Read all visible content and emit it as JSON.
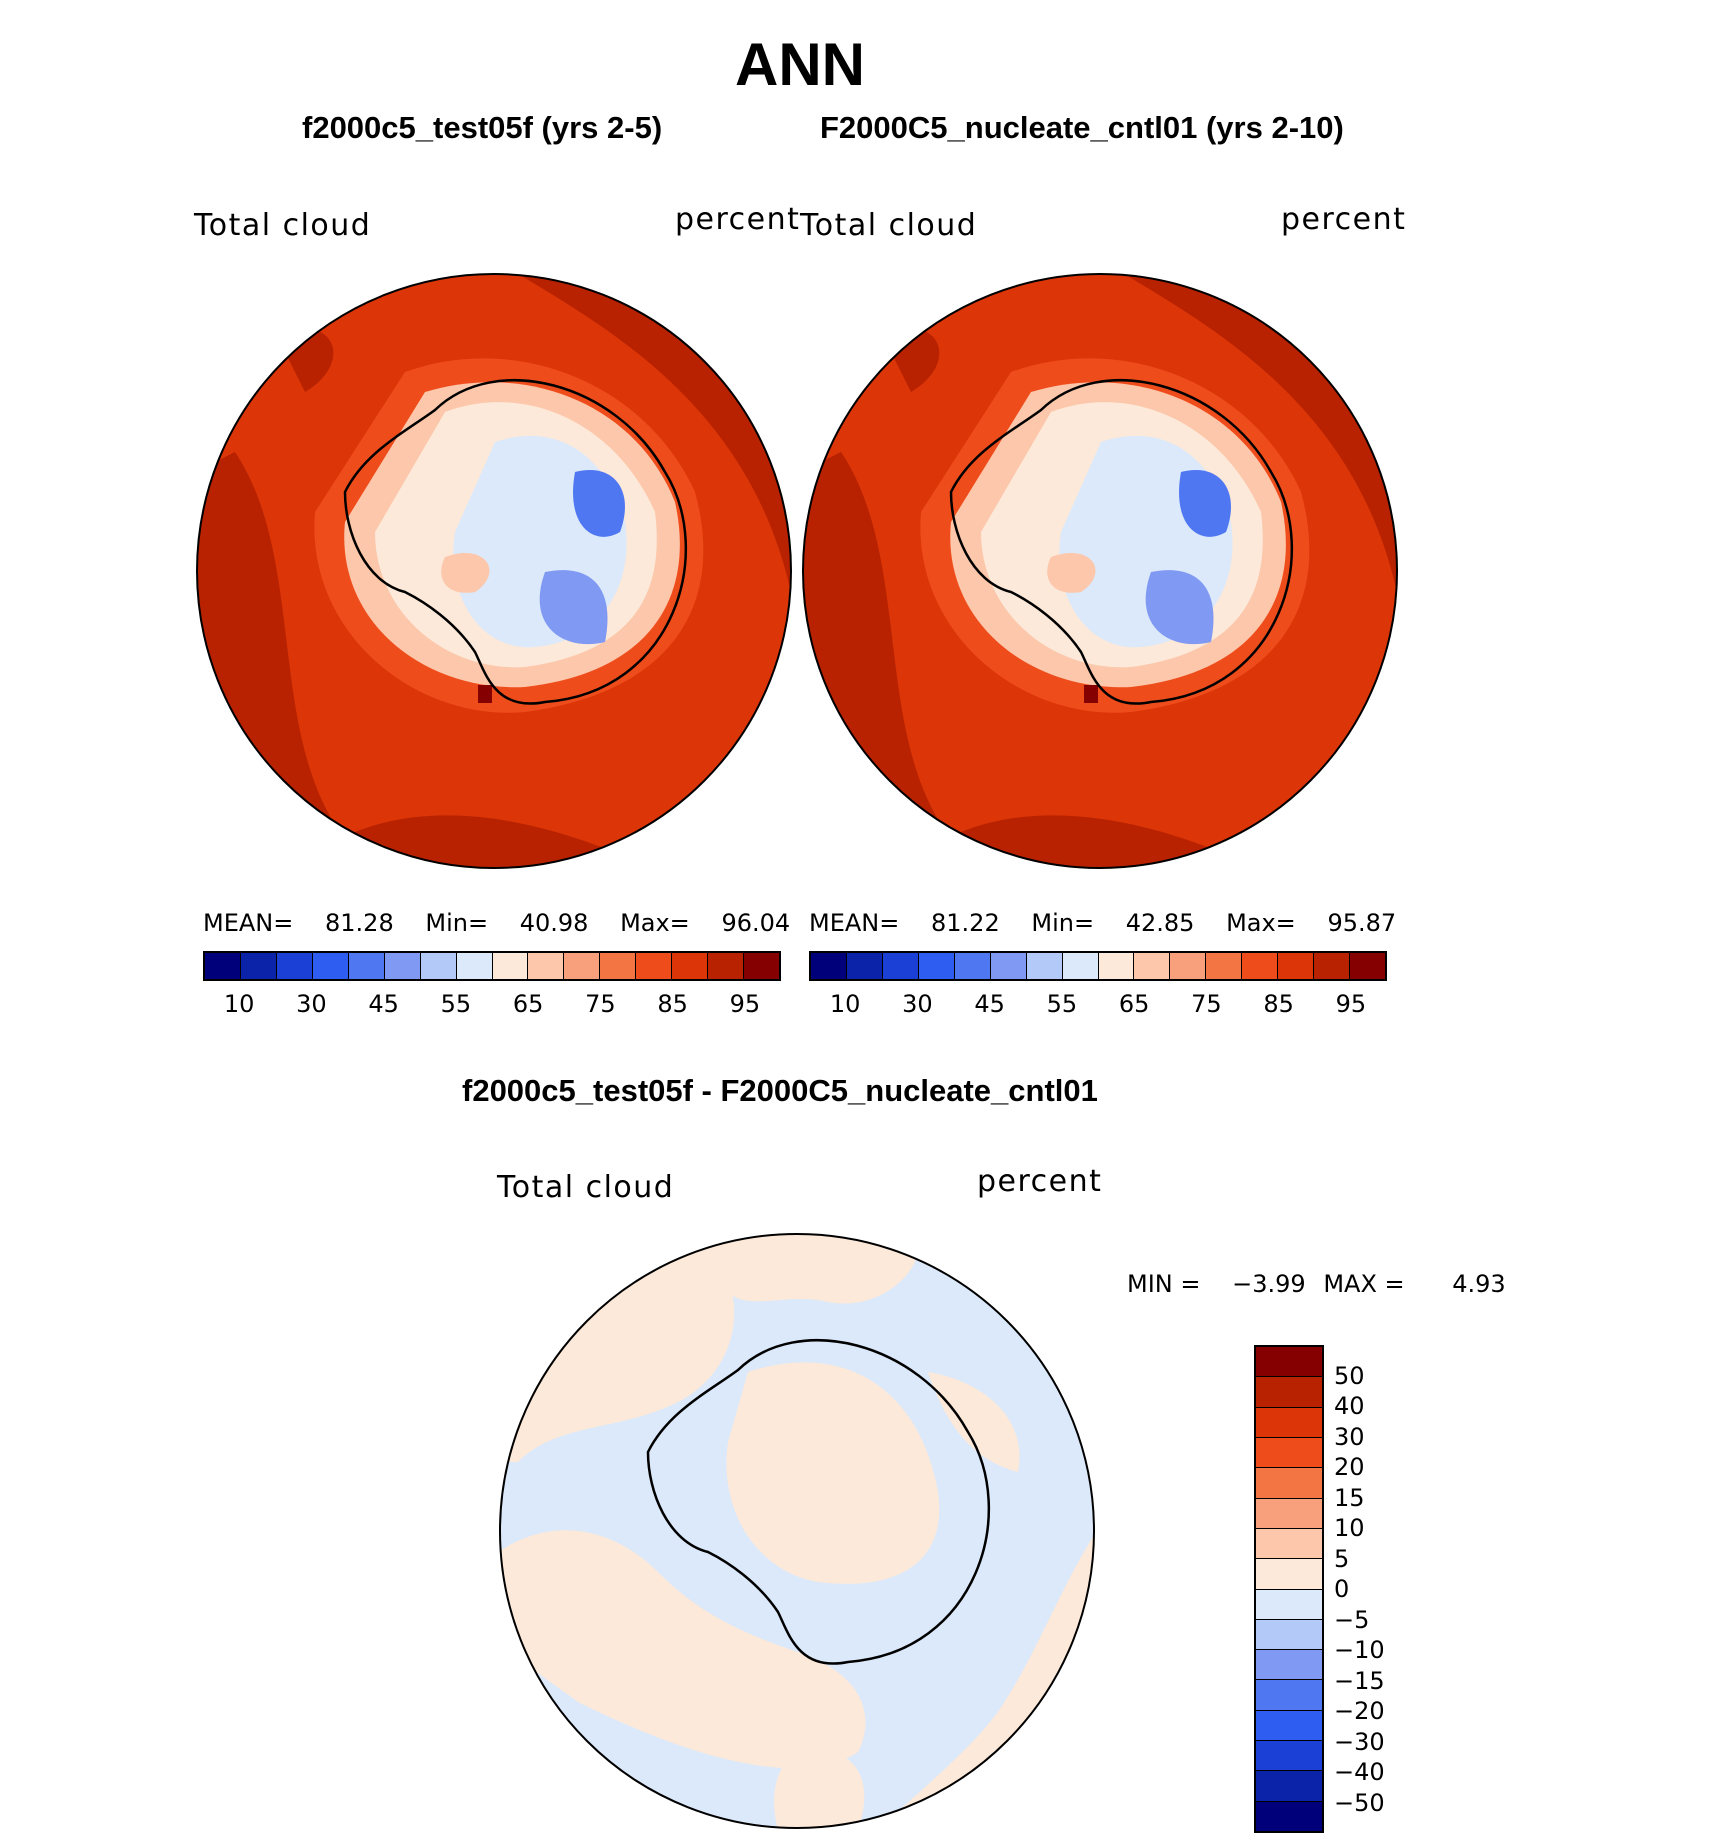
{
  "figure": {
    "title": "ANN",
    "panels": [
      {
        "case_title": "f2000c5_test05f (yrs 2-5)",
        "left_label": "Total cloud",
        "right_label": "percent",
        "stats": {
          "mean_label": "MEAN=",
          "mean": "81.28",
          "min_label": "Min=",
          "min": "40.98",
          "max_label": "Max=",
          "max": "96.04"
        }
      },
      {
        "case_title": "F2000C5_nucleate_cntl01 (yrs 2-10)",
        "left_label": "Total cloud",
        "right_label": "percent",
        "stats": {
          "mean_label": "MEAN=",
          "mean": "81.22",
          "min_label": "Min=",
          "min": "42.85",
          "max_label": "Max=",
          "max": "95.87"
        }
      }
    ],
    "diff_panel": {
      "title": "f2000c5_test05f - F2000C5_nucleate_cntl01",
      "left_label": "Total cloud",
      "right_label": "percent",
      "min_label": "MIN =",
      "min": "−3.99",
      "max_label": "MAX =",
      "max": "4.93"
    }
  },
  "colors": {
    "abs_scale": [
      "#00007a",
      "#0a23a8",
      "#1a40d6",
      "#2e5df2",
      "#5077f2",
      "#8099f2",
      "#b3c9f7",
      "#dbe9fa",
      "#fce9d9",
      "#fcc7aa",
      "#f8a07c",
      "#f47544",
      "#ef4c1c",
      "#db3508",
      "#b82200",
      "#850000"
    ],
    "diff_scale_top_to_bottom": [
      "#850000",
      "#b82200",
      "#db3508",
      "#ef4c1c",
      "#f47544",
      "#f8a07c",
      "#fcc7aa",
      "#fce9d9",
      "#dbe9fa",
      "#b3c9f7",
      "#8099f2",
      "#5077f2",
      "#2e5df2",
      "#1a40d6",
      "#0a23a8",
      "#00007a"
    ]
  },
  "colorbars": {
    "abs_ticks": [
      "10",
      "30",
      "45",
      "55",
      "65",
      "75",
      "85",
      "95"
    ],
    "diff_ticks": [
      "50",
      "40",
      "30",
      "20",
      "15",
      "10",
      "5",
      "0",
      "−5",
      "−10",
      "−15",
      "−20",
      "−30",
      "−40",
      "−50"
    ]
  },
  "chart_data": {
    "type": "heatmap",
    "projection": "south-polar stereographic",
    "variable": "Total cloud",
    "units": "percent",
    "season": "ANN",
    "panels": [
      {
        "case": "f2000c5_test05f (yrs 2-5)",
        "mean": 81.28,
        "min": 40.98,
        "max": 96.04
      },
      {
        "case": "F2000C5_nucleate_cntl01 (yrs 2-10)",
        "mean": 81.22,
        "min": 42.85,
        "max": 95.87
      },
      {
        "case": "f2000c5_test05f - F2000C5_nucleate_cntl01",
        "min": -3.99,
        "max": 4.93
      }
    ],
    "abs_contour_levels": [
      10,
      30,
      45,
      55,
      65,
      75,
      85,
      95
    ],
    "diff_contour_levels": [
      -50,
      -40,
      -30,
      -20,
      -15,
      -10,
      -5,
      0,
      5,
      10,
      15,
      20,
      30,
      40,
      50
    ]
  }
}
